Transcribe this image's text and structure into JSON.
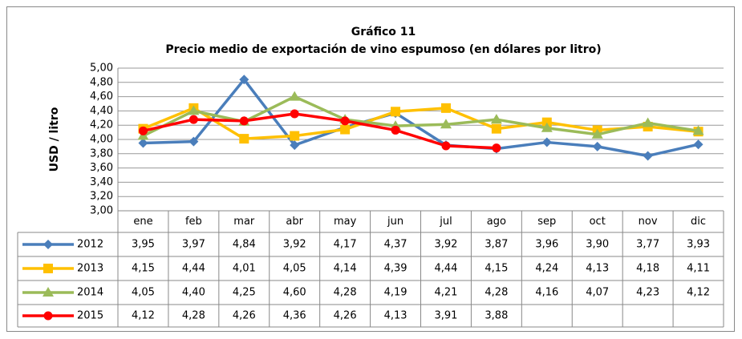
{
  "chart_data": {
    "type": "line",
    "title": "Gráfico 11",
    "subtitle": "Precio medio de exportación de vino espumoso (en dólares por litro)",
    "y_label": "USD / litro",
    "categories": [
      "ene",
      "feb",
      "mar",
      "abr",
      "may",
      "jun",
      "jul",
      "ago",
      "sep",
      "oct",
      "nov",
      "dic"
    ],
    "series": [
      {
        "name": "2012",
        "color": "#4a7ebb",
        "marker": "diamond",
        "values": [
          3.95,
          3.97,
          4.84,
          3.92,
          4.17,
          4.37,
          3.92,
          3.87,
          3.96,
          3.9,
          3.77,
          3.93
        ],
        "value_labels": [
          "3,95",
          "3,97",
          "4,84",
          "3,92",
          "4,17",
          "4,37",
          "3,92",
          "3,87",
          "3,96",
          "3,90",
          "3,77",
          "3,93"
        ]
      },
      {
        "name": "2013",
        "color": "#ffc000",
        "marker": "square",
        "values": [
          4.15,
          4.44,
          4.01,
          4.05,
          4.14,
          4.39,
          4.44,
          4.15,
          4.24,
          4.13,
          4.18,
          4.11
        ],
        "value_labels": [
          "4,15",
          "4,44",
          "4,01",
          "4,05",
          "4,14",
          "4,39",
          "4,44",
          "4,15",
          "4,24",
          "4,13",
          "4,18",
          "4,11"
        ]
      },
      {
        "name": "2014",
        "color": "#9bbb59",
        "marker": "triangle",
        "values": [
          4.05,
          4.4,
          4.25,
          4.6,
          4.28,
          4.19,
          4.21,
          4.28,
          4.16,
          4.07,
          4.23,
          4.12
        ],
        "value_labels": [
          "4,05",
          "4,40",
          "4,25",
          "4,60",
          "4,28",
          "4,19",
          "4,21",
          "4,28",
          "4,16",
          "4,07",
          "4,23",
          "4,12"
        ]
      },
      {
        "name": "2015",
        "color": "#ff0000",
        "marker": "circle",
        "values": [
          4.12,
          4.28,
          4.26,
          4.36,
          4.26,
          4.13,
          3.91,
          3.88,
          null,
          null,
          null,
          null
        ],
        "value_labels": [
          "4,12",
          "4,28",
          "4,26",
          "4,36",
          "4,26",
          "4,13",
          "3,91",
          "3,88",
          null,
          null,
          null,
          null
        ]
      }
    ],
    "ylim": [
      3,
      5
    ],
    "yticks": [
      {
        "value": 3,
        "label": "3,00"
      },
      {
        "value": 3.2,
        "label": "3,20"
      },
      {
        "value": 3.4,
        "label": "3,40"
      },
      {
        "value": 3.6,
        "label": "3,60"
      },
      {
        "value": 3.8,
        "label": "3,80"
      },
      {
        "value": 4,
        "label": "4,00"
      },
      {
        "value": 4.2,
        "label": "4,20"
      },
      {
        "value": 4.4,
        "label": "4,40"
      },
      {
        "value": 4.6,
        "label": "4,60"
      },
      {
        "value": 4.8,
        "label": "4,80"
      },
      {
        "value": 5,
        "label": "5,00"
      }
    ],
    "grid": true
  }
}
